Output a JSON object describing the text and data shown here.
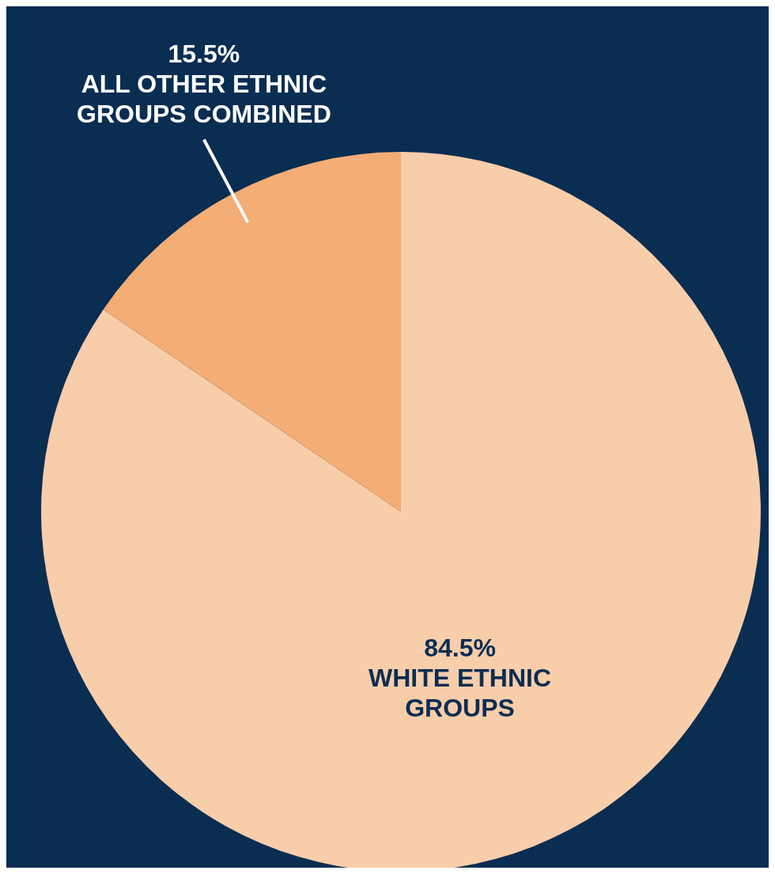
{
  "chart_data": {
    "type": "pie",
    "categories": [
      "WHITE ETHNIC GROUPS",
      "ALL OTHER ETHNIC GROUPS COMBINED"
    ],
    "values": [
      84.5,
      15.5
    ],
    "colors": [
      "#f8cdaa",
      "#f4ad74"
    ],
    "value_labels": [
      "84.5%",
      "15.5%"
    ],
    "legend": false
  }
}
